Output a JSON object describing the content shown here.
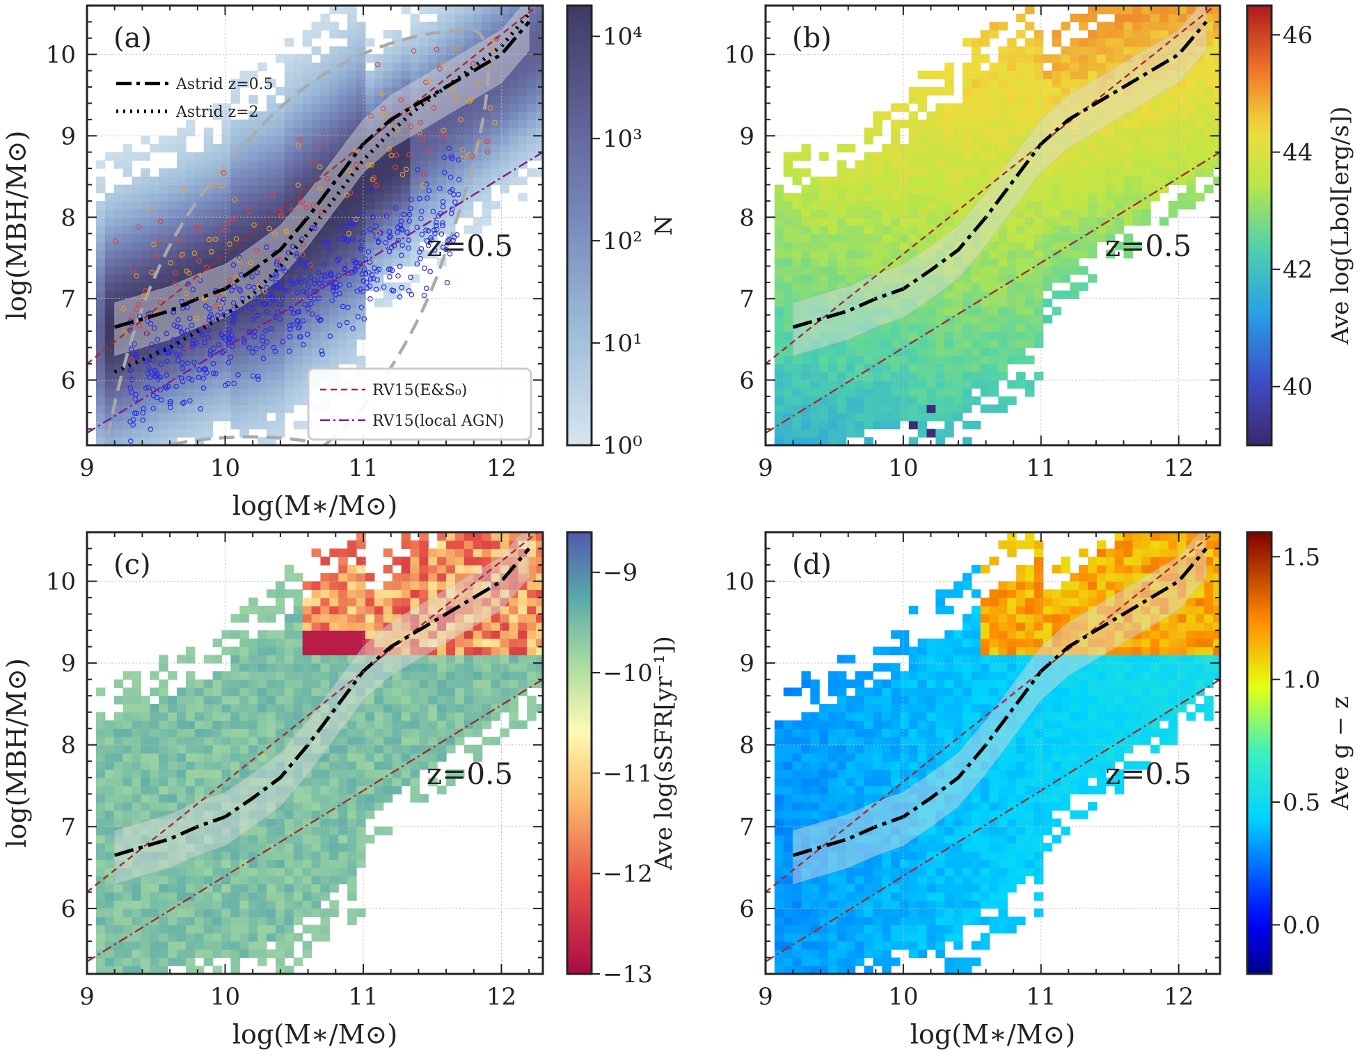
{
  "chart_data": [
    {
      "type": "heatmap",
      "panel_label": "(a)",
      "annotation": "z=0.5",
      "xlabel": "log(M∗/M⊙)",
      "ylabel": "log(MBH/M⊙)",
      "xlim": [
        9,
        12.3
      ],
      "ylim": [
        5.2,
        10.6
      ],
      "xticks": [
        "9",
        "10",
        "11",
        "12"
      ],
      "yticks": [
        "6",
        "7",
        "8",
        "9",
        "10"
      ],
      "colorbar": {
        "label": "N",
        "scale": "log",
        "range": [
          1,
          20000
        ],
        "ticks": [
          "10⁰",
          "10¹",
          "10²",
          "10³",
          "10⁴"
        ],
        "colormap": "blue-purple"
      },
      "legend_top": [
        "Astrid z=0.5",
        "Astrid z=2"
      ],
      "legend_bottom": [
        "RV15(E&S₀)",
        "RV15(local AGN)"
      ],
      "series": [
        {
          "name": "Astrid z=0.5",
          "x": [
            9.2,
            9.4,
            9.6,
            9.8,
            10.0,
            10.2,
            10.4,
            10.6,
            10.8,
            11.0,
            11.2,
            11.4,
            11.6,
            11.8,
            12.0,
            12.2
          ],
          "y": [
            6.65,
            6.75,
            6.85,
            7.0,
            7.12,
            7.35,
            7.6,
            8.0,
            8.45,
            8.9,
            9.2,
            9.4,
            9.6,
            9.8,
            10.0,
            10.4
          ]
        },
        {
          "name": "Astrid z=2",
          "x": [
            9.2,
            9.4,
            9.6,
            9.8,
            10.0,
            10.2,
            10.4,
            10.6,
            10.8,
            11.0,
            11.2,
            11.4,
            11.6,
            11.8,
            12.0,
            12.2
          ],
          "y": [
            6.1,
            6.25,
            6.4,
            6.6,
            6.8,
            7.05,
            7.4,
            7.8,
            8.25,
            8.7,
            9.05,
            9.35,
            9.6,
            9.85,
            10.1,
            10.5
          ]
        },
        {
          "name": "RV15(E&S₀)",
          "x": [
            9.0,
            12.3
          ],
          "y": [
            6.2,
            10.65
          ]
        },
        {
          "name": "RV15(local AGN)",
          "x": [
            9.0,
            12.3
          ],
          "y": [
            5.35,
            8.8
          ]
        }
      ]
    },
    {
      "type": "heatmap",
      "panel_label": "(b)",
      "annotation": "z=0.5",
      "xlabel": "",
      "ylabel": "",
      "xlim": [
        9,
        12.3
      ],
      "ylim": [
        5.2,
        10.6
      ],
      "xticks": [
        "9",
        "10",
        "11",
        "12"
      ],
      "yticks": [
        "6",
        "7",
        "8",
        "9",
        "10"
      ],
      "colorbar": {
        "label": "Ave log(Lbol[erg/s])",
        "range": [
          39,
          46.5
        ],
        "ticks": [
          "40",
          "42",
          "44",
          "46"
        ],
        "colormap": "spectral-rainbow"
      },
      "series": [
        {
          "name": "Astrid z=0.5",
          "x": [
            9.2,
            9.4,
            9.6,
            9.8,
            10.0,
            10.2,
            10.4,
            10.6,
            10.8,
            11.0,
            11.2,
            11.4,
            11.6,
            11.8,
            12.0,
            12.2
          ],
          "y": [
            6.65,
            6.75,
            6.85,
            7.0,
            7.12,
            7.35,
            7.6,
            8.0,
            8.45,
            8.9,
            9.2,
            9.4,
            9.6,
            9.8,
            10.0,
            10.4
          ]
        }
      ]
    },
    {
      "type": "heatmap",
      "panel_label": "(c)",
      "annotation": "z=0.5",
      "xlabel": "log(M∗/M⊙)",
      "ylabel": "log(MBH/M⊙)",
      "xlim": [
        9,
        12.3
      ],
      "ylim": [
        5.2,
        10.6
      ],
      "xticks": [
        "9",
        "10",
        "11",
        "12"
      ],
      "yticks": [
        "6",
        "7",
        "8",
        "9",
        "10"
      ],
      "colorbar": {
        "label": "Ave log(sSFR[yr⁻¹])",
        "range": [
          -13,
          -8.6
        ],
        "ticks": [
          "−9",
          "−10",
          "−11",
          "−12",
          "−13"
        ],
        "colormap": "spectral"
      },
      "series": [
        {
          "name": "Astrid z=0.5",
          "x": [
            9.2,
            9.4,
            9.6,
            9.8,
            10.0,
            10.2,
            10.4,
            10.6,
            10.8,
            11.0,
            11.2,
            11.4,
            11.6,
            11.8,
            12.0,
            12.2
          ],
          "y": [
            6.65,
            6.75,
            6.85,
            7.0,
            7.12,
            7.35,
            7.6,
            8.0,
            8.45,
            8.9,
            9.2,
            9.4,
            9.6,
            9.8,
            10.0,
            10.4
          ]
        }
      ]
    },
    {
      "type": "heatmap",
      "panel_label": "(d)",
      "annotation": "z=0.5",
      "xlabel": "log(M∗/M⊙)",
      "ylabel": "",
      "xlim": [
        9,
        12.3
      ],
      "ylim": [
        5.2,
        10.6
      ],
      "xticks": [
        "9",
        "10",
        "11",
        "12"
      ],
      "yticks": [
        "6",
        "7",
        "8",
        "9",
        "10"
      ],
      "colorbar": {
        "label": "Ave g − z",
        "range": [
          -0.2,
          1.6
        ],
        "ticks": [
          "0.0",
          "0.5",
          "1.0",
          "1.5"
        ],
        "colormap": "jet"
      },
      "series": [
        {
          "name": "Astrid z=0.5",
          "x": [
            9.2,
            9.4,
            9.6,
            9.8,
            10.0,
            10.2,
            10.4,
            10.6,
            10.8,
            11.0,
            11.2,
            11.4,
            11.6,
            11.8,
            12.0,
            12.2
          ],
          "y": [
            6.65,
            6.75,
            6.85,
            7.0,
            7.12,
            7.35,
            7.6,
            8.0,
            8.45,
            8.9,
            9.2,
            9.4,
            9.6,
            9.8,
            10.0,
            10.4
          ]
        }
      ]
    }
  ]
}
